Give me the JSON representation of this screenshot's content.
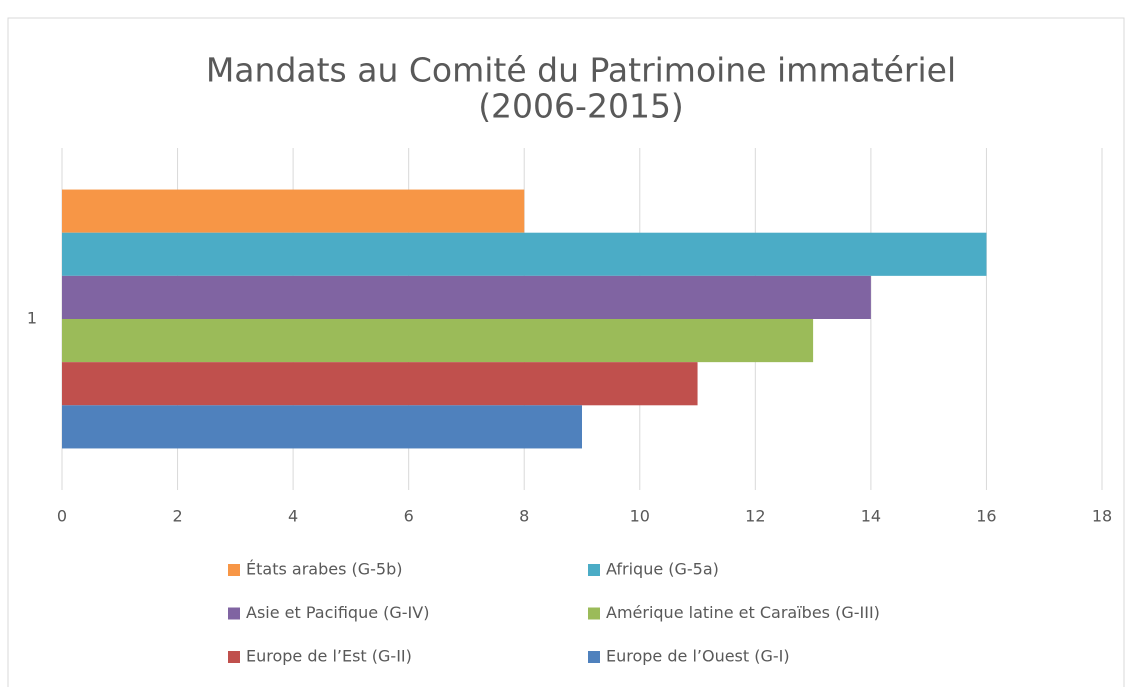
{
  "chart_data": {
    "type": "bar",
    "orientation": "horizontal",
    "title": "Mandats au Comité du Patrimoine immatériel",
    "subtitle": "(2006-2015)",
    "categories": [
      "1"
    ],
    "series": [
      {
        "name": "États arabes (G-5b)",
        "color": "#f79646",
        "values": [
          8
        ]
      },
      {
        "name": "Afrique (G-5a)",
        "color": "#4bacc6",
        "values": [
          16
        ]
      },
      {
        "name": "Asie et Pacifique (G-IV)",
        "color": "#8064a2",
        "values": [
          14
        ]
      },
      {
        "name": "Amérique latine et Caraïbes (G-III)",
        "color": "#9bbb59",
        "values": [
          13
        ]
      },
      {
        "name": "Europe de l’Est (G-II)",
        "color": "#c0504d",
        "values": [
          11
        ]
      },
      {
        "name": "Europe de l’Ouest (G-I)",
        "color": "#4f81bd",
        "values": [
          9
        ]
      }
    ],
    "xlim": [
      0,
      18
    ],
    "xticks": [
      0,
      2,
      4,
      6,
      8,
      10,
      12,
      14,
      16,
      18
    ],
    "grid": true,
    "legend": "bottom"
  }
}
